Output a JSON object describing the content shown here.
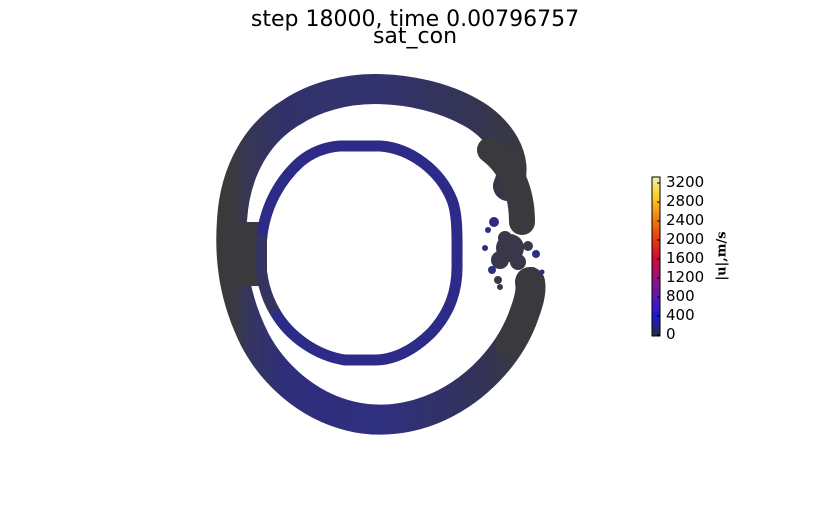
{
  "chart_data": {
    "type": "heatmap",
    "title": "step 18000, time 0.00796757",
    "subtitle": "sat_con",
    "colorbar": {
      "label": "|u|,m/s",
      "ticks": [
        "3200",
        "2800",
        "2400",
        "2000",
        "1600",
        "1200",
        "800",
        "400",
        "0"
      ],
      "range": [
        0,
        3300
      ],
      "colormap": [
        "#2b2b3a",
        "#1a1ad0",
        "#6a1aa8",
        "#b0105a",
        "#e01a1a",
        "#f05a10",
        "#f8a010",
        "#f8e020",
        "#f0f0a0"
      ]
    },
    "colors": {
      "outer_ring_dark": "#3a3a3c",
      "ring_blue": "#2e2e80",
      "inner_ring": "#2c2c88"
    }
  }
}
